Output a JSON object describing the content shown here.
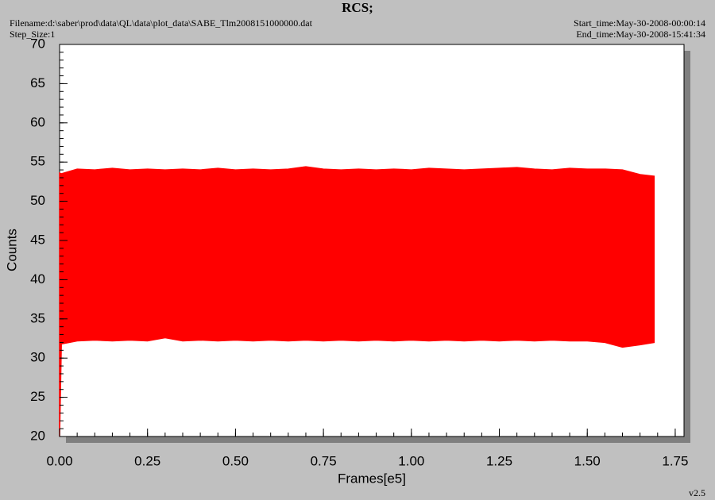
{
  "chart_data": {
    "type": "band",
    "title": "RCS;",
    "filename": "Filename:d:\\saber\\prod\\data\\QL\\data\\plot_data\\SABE_Tlm2008151000000.dat",
    "step_size": "Step_Size:1",
    "start_time": "Start_time:May-30-2008-00:00:14",
    "end_time": "End_time:May-30-2008-15:41:34",
    "version": "v2.5",
    "xlabel": "Frames[e5]",
    "ylabel": "Counts",
    "color": "#ff0000",
    "x": [
      0,
      0.005,
      0.05,
      0.1,
      0.15,
      0.2,
      0.25,
      0.3,
      0.35,
      0.4,
      0.45,
      0.5,
      0.55,
      0.6,
      0.65,
      0.7,
      0.75,
      0.8,
      0.85,
      0.9,
      0.95,
      1.0,
      1.05,
      1.1,
      1.15,
      1.2,
      1.25,
      1.3,
      1.35,
      1.4,
      1.45,
      1.5,
      1.55,
      1.6,
      1.65,
      1.69
    ],
    "high": [
      53.6,
      53.5,
      54.1,
      54.0,
      54.2,
      54.0,
      54.1,
      54.0,
      54.1,
      54.0,
      54.2,
      54.0,
      54.1,
      54.0,
      54.1,
      54.4,
      54.1,
      54.0,
      54.1,
      54.0,
      54.1,
      54.0,
      54.2,
      54.1,
      54.0,
      54.1,
      54.2,
      54.3,
      54.1,
      54.0,
      54.2,
      54.1,
      54.1,
      54.0,
      53.4,
      53.2
    ],
    "low": [
      20,
      31.8,
      32.2,
      32.3,
      32.2,
      32.3,
      32.2,
      32.6,
      32.2,
      32.3,
      32.2,
      32.3,
      32.2,
      32.3,
      32.2,
      32.3,
      32.2,
      32.3,
      32.2,
      32.3,
      32.2,
      32.3,
      32.2,
      32.3,
      32.2,
      32.3,
      32.2,
      32.3,
      32.2,
      32.3,
      32.2,
      32.2,
      32.0,
      31.4,
      31.7,
      32.0
    ],
    "xlim": [
      0,
      1.775
    ],
    "ylim": [
      20,
      70
    ],
    "xticks": [
      {
        "value": 0,
        "label": "0.00"
      },
      {
        "value": 0.25,
        "label": "0.25"
      },
      {
        "value": 0.5,
        "label": "0.50"
      },
      {
        "value": 0.75,
        "label": "0.75"
      },
      {
        "value": 1,
        "label": "1.00"
      },
      {
        "value": 1.25,
        "label": "1.25"
      },
      {
        "value": 1.5,
        "label": "1.50"
      },
      {
        "value": 1.75,
        "label": "1.75"
      }
    ],
    "yticks": [
      20,
      25,
      30,
      35,
      40,
      45,
      50,
      55,
      60,
      65,
      70
    ],
    "xminor": 0.05,
    "yminor": 1
  }
}
